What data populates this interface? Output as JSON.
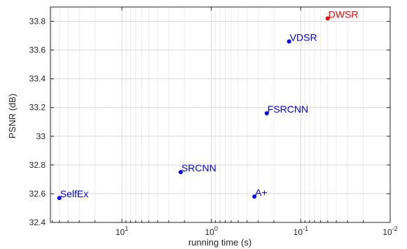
{
  "chart_data": {
    "type": "scatter",
    "title": "",
    "xlabel": "running time (s)",
    "ylabel": "PSNR (dB)",
    "x_scale": "log",
    "x_reversed": true,
    "xlim": [
      63,
      0.01
    ],
    "ylim": [
      32.4,
      33.9
    ],
    "x_ticks": [
      {
        "value": 10,
        "base": "10",
        "exp": "1"
      },
      {
        "value": 1,
        "base": "10",
        "exp": "0"
      },
      {
        "value": 0.1,
        "base": "10",
        "exp": "-1"
      },
      {
        "value": 0.01,
        "base": "10",
        "exp": "-2"
      }
    ],
    "y_ticks": [
      "32.4",
      "32.6",
      "32.8",
      "33",
      "33.2",
      "33.4",
      "33.6",
      "33.8"
    ],
    "grid": true,
    "legend": "none",
    "points": [
      {
        "label": "SelfEx",
        "x": 50,
        "y": 32.57,
        "color": "#0000ff"
      },
      {
        "label": "SRCNN",
        "x": 2.2,
        "y": 32.75,
        "color": "#0000ff"
      },
      {
        "label": "A+",
        "x": 0.33,
        "y": 32.58,
        "color": "#0000ff"
      },
      {
        "label": "FSRCNN",
        "x": 0.24,
        "y": 33.16,
        "color": "#0000ff"
      },
      {
        "label": "VDSR",
        "x": 0.135,
        "y": 33.66,
        "color": "#0000ff"
      },
      {
        "label": "DWSR",
        "x": 0.05,
        "y": 33.82,
        "color": "#ff0000"
      }
    ]
  }
}
